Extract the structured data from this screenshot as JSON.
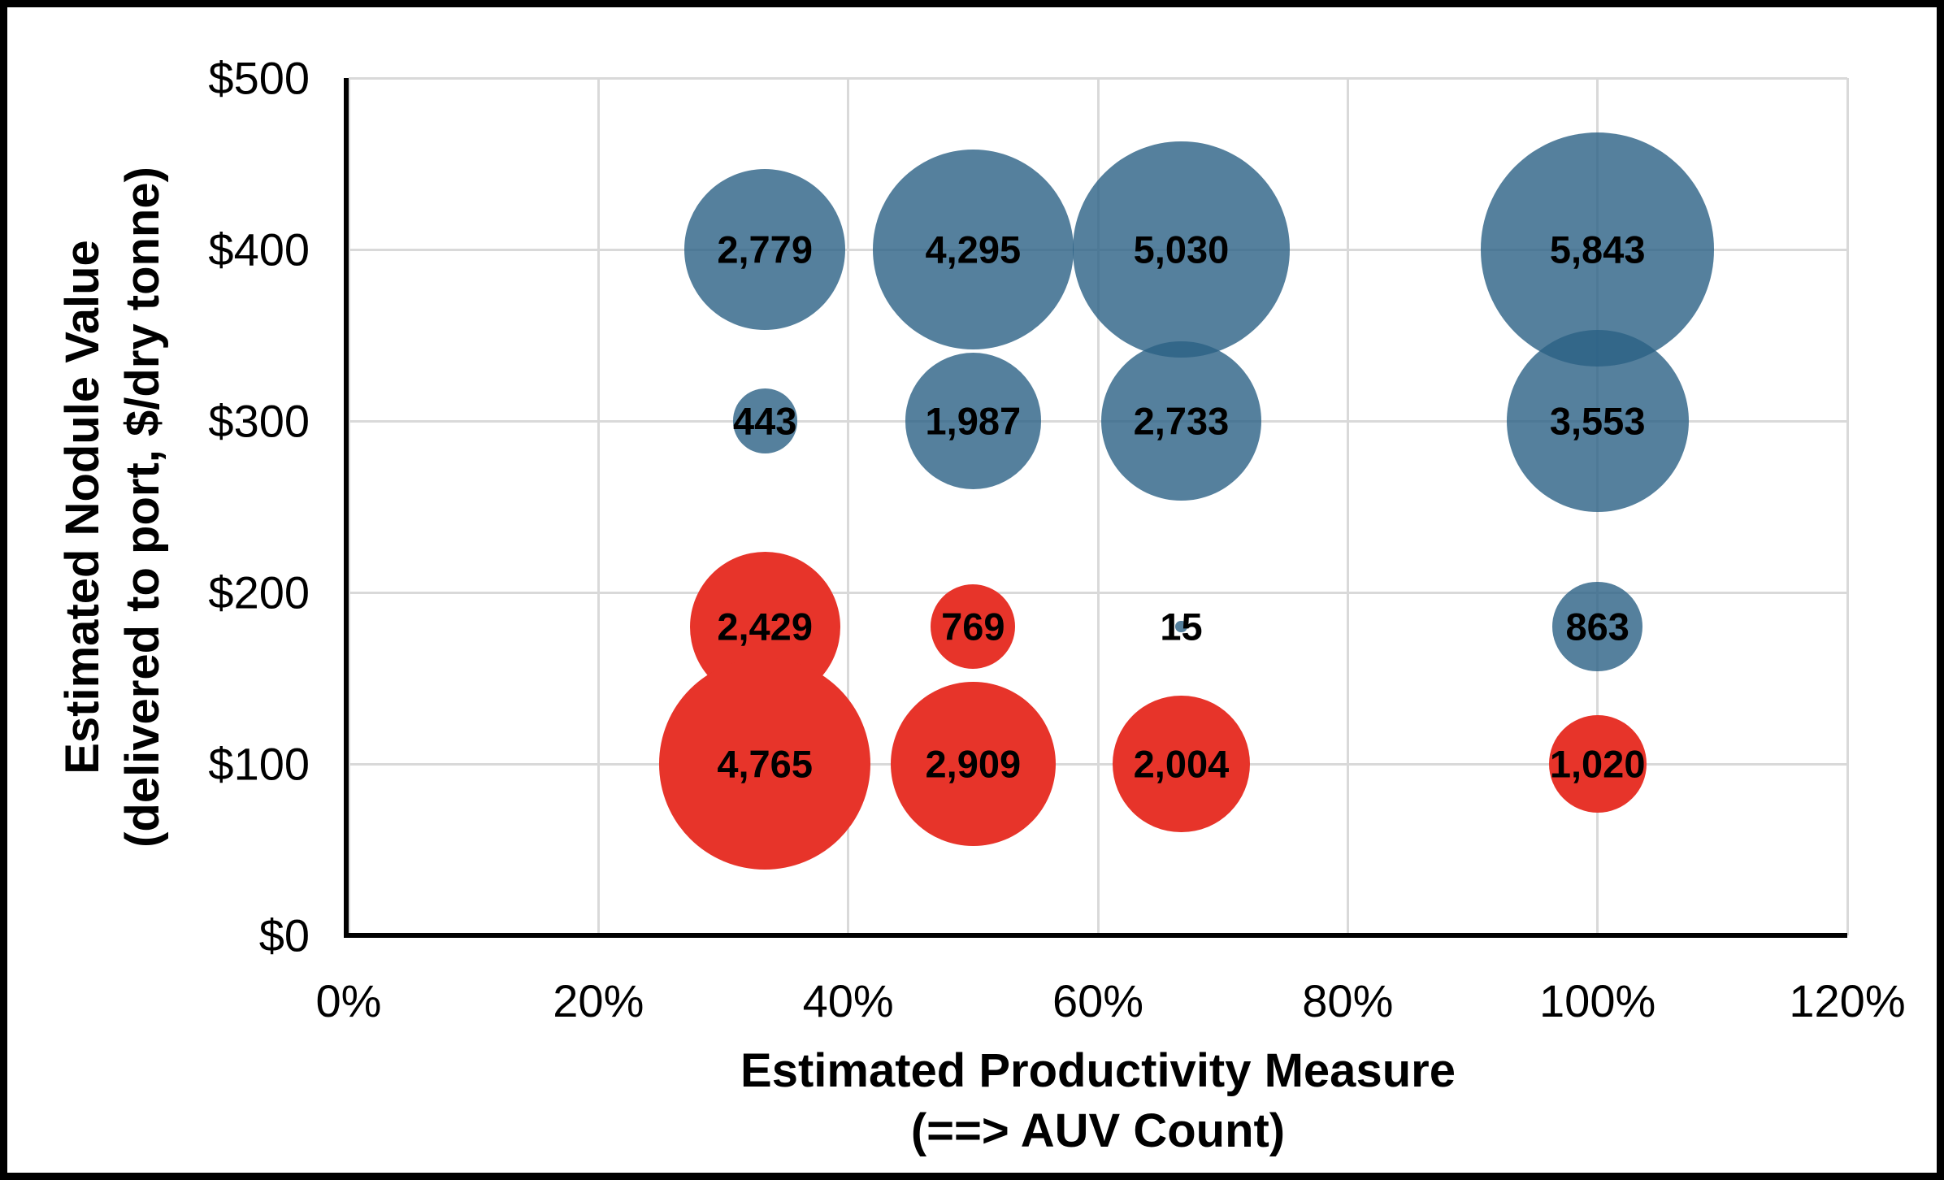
{
  "chart_data": {
    "type": "bubble",
    "title": "",
    "xlabel_line1": "Estimated Productivity Measure",
    "xlabel_line2": "(==> AUV Count)",
    "ylabel_line1": "Estimated Nodule Value",
    "ylabel_line2": "(delivered to port, $/dry tonne)",
    "x_axis": {
      "min": 0,
      "max": 120,
      "tick_step": 20,
      "tick_values": [
        0,
        20,
        40,
        60,
        80,
        100,
        120
      ],
      "tick_labels": [
        "0%",
        "20%",
        "40%",
        "60%",
        "80%",
        "100%",
        "120%"
      ]
    },
    "y_axis": {
      "min": 0,
      "max": 500,
      "tick_step": 100,
      "tick_values": [
        0,
        100,
        200,
        300,
        400,
        500
      ],
      "tick_labels": [
        "$0",
        "$100",
        "$200",
        "$300",
        "$400",
        "$500"
      ]
    },
    "grid": true,
    "legend": "none",
    "colors": {
      "blue_fill": "#2A6085",
      "blue_alpha": 0.8,
      "red_fill": "#E7342A",
      "red_alpha": 1.0,
      "gridline": "#D9D9D9",
      "axis_line": "#000000",
      "label_text": "#000000"
    },
    "series": [
      {
        "name": "blue-series",
        "points": [
          {
            "x": 33.33,
            "y": 400,
            "value": 2779,
            "label": "2,779"
          },
          {
            "x": 50,
            "y": 400,
            "value": 4295,
            "label": "4,295"
          },
          {
            "x": 66.67,
            "y": 400,
            "value": 5030,
            "label": "5,030"
          },
          {
            "x": 100,
            "y": 400,
            "value": 5843,
            "label": "5,843"
          },
          {
            "x": 33.33,
            "y": 300,
            "value": 443,
            "label": "443"
          },
          {
            "x": 50,
            "y": 300,
            "value": 1987,
            "label": "1,987"
          },
          {
            "x": 66.67,
            "y": 300,
            "value": 2733,
            "label": "2,733"
          },
          {
            "x": 100,
            "y": 300,
            "value": 3553,
            "label": "3,553"
          },
          {
            "x": 66.67,
            "y": 180,
            "value": 15,
            "label": "15"
          },
          {
            "x": 100,
            "y": 180,
            "value": 863,
            "label": "863"
          }
        ]
      },
      {
        "name": "red-series",
        "points": [
          {
            "x": 33.33,
            "y": 180,
            "value": 2429,
            "label": "2,429"
          },
          {
            "x": 50,
            "y": 180,
            "value": 769,
            "label": "769"
          },
          {
            "x": 33.33,
            "y": 100,
            "value": 4765,
            "label": "4,765"
          },
          {
            "x": 50,
            "y": 100,
            "value": 2909,
            "label": "2,909"
          },
          {
            "x": 66.67,
            "y": 100,
            "value": 2004,
            "label": "2,004"
          },
          {
            "x": 100,
            "y": 100,
            "value": 1020,
            "label": "1,020"
          }
        ]
      }
    ]
  }
}
